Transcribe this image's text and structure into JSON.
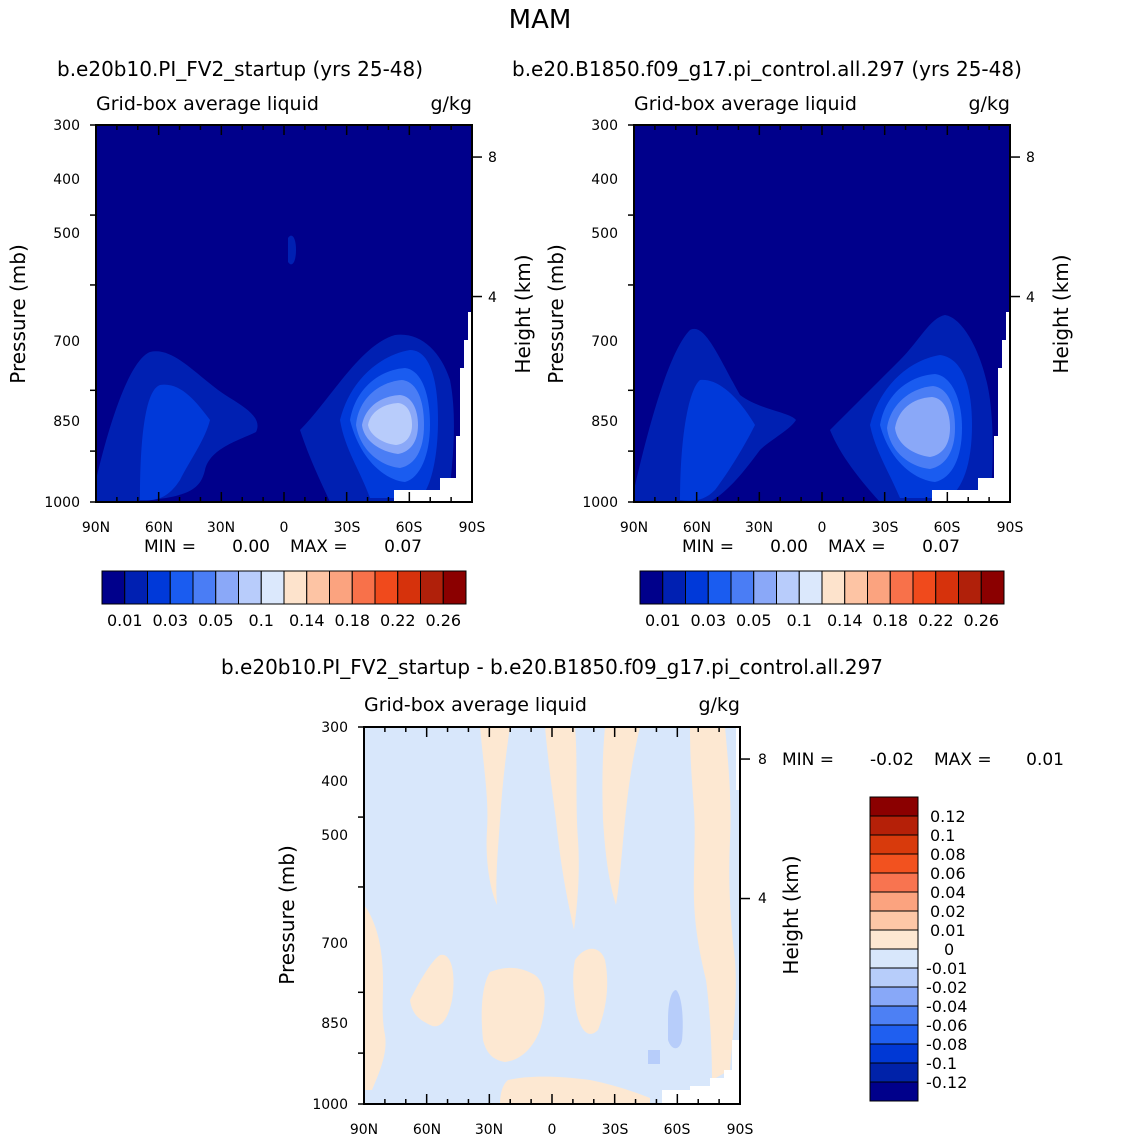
{
  "figure": {
    "season": "MAM"
  },
  "colors": {
    "seq": [
      "#00008b",
      "#0020b2",
      "#0039d9",
      "#1a5cf0",
      "#4a7df5",
      "#8aa8f8",
      "#b8ccfb",
      "#dbe8fc",
      "#fde3cc",
      "#fdc4a4",
      "#fba37f",
      "#f8714a",
      "#f04a1c",
      "#d6320c",
      "#b0200a",
      "#8b0000"
    ],
    "div": [
      "#00008b",
      "#0022a9",
      "#0038d5",
      "#1f5ff0",
      "#4d80f4",
      "#88a8f8",
      "#b7cdfa",
      "#d8e7fb",
      "#fde8d2",
      "#fdc7a7",
      "#fba37f",
      "#f87450",
      "#f2521f",
      "#d83a0c",
      "#b52008",
      "#8b0000"
    ]
  },
  "chart_data": [
    {
      "type": "heatmap",
      "title": "b.e20b10.PI_FV2_startup (yrs 25-48)",
      "subtitle_left": "Grid-box average liquid",
      "subtitle_right": "g/kg",
      "ylabel": "Pressure (mb)",
      "ylabel_right": "Height (km)",
      "x_ticklabels": [
        "90N",
        "60N",
        "30N",
        "0",
        "30S",
        "60S",
        "90S"
      ],
      "y_ticklabels": [
        "300",
        "400",
        "500",
        "700",
        "850",
        "1000"
      ],
      "y_ticks_mb": [
        300,
        400,
        500,
        700,
        850,
        1000
      ],
      "height_ticks": [
        "8",
        "4"
      ],
      "minmax": {
        "min_label": "MIN =",
        "min": "0.00",
        "max_label": "MAX =",
        "max": "0.07"
      },
      "colorbar_labels": [
        "0.01",
        "0.03",
        "0.05",
        "0.1",
        "0.14",
        "0.18",
        "0.22",
        "0.26"
      ],
      "maxima": [
        {
          "lat": "50S",
          "p_mb": 850,
          "value": 0.07
        },
        {
          "lat": "55N",
          "p_mb": 850,
          "value": 0.03
        }
      ]
    },
    {
      "type": "heatmap",
      "title": "b.e20.B1850.f09_g17.pi_control.all.297 (yrs 25-48)",
      "subtitle_left": "Grid-box average liquid",
      "subtitle_right": "g/kg",
      "ylabel": "Pressure (mb)",
      "ylabel_right": "Height (km)",
      "x_ticklabels": [
        "90N",
        "60N",
        "30N",
        "0",
        "30S",
        "60S",
        "90S"
      ],
      "y_ticklabels": [
        "300",
        "400",
        "500",
        "700",
        "850",
        "1000"
      ],
      "y_ticks_mb": [
        300,
        400,
        500,
        700,
        850,
        1000
      ],
      "height_ticks": [
        "8",
        "4"
      ],
      "minmax": {
        "min_label": "MIN =",
        "min": "0.00",
        "max_label": "MAX =",
        "max": "0.07"
      },
      "colorbar_labels": [
        "0.01",
        "0.03",
        "0.05",
        "0.1",
        "0.14",
        "0.18",
        "0.22",
        "0.26"
      ],
      "maxima": [
        {
          "lat": "50S",
          "p_mb": 850,
          "value": 0.07
        },
        {
          "lat": "55N",
          "p_mb": 850,
          "value": 0.03
        }
      ]
    },
    {
      "type": "heatmap",
      "title": "b.e20b10.PI_FV2_startup - b.e20.B1850.f09_g17.pi_control.all.297",
      "subtitle_left": "Grid-box average liquid",
      "subtitle_right": "g/kg",
      "ylabel": "Pressure (mb)",
      "ylabel_right": "Height (km)",
      "x_ticklabels": [
        "90N",
        "60N",
        "30N",
        "0",
        "30S",
        "60S",
        "90S"
      ],
      "y_ticklabels": [
        "300",
        "400",
        "500",
        "700",
        "850",
        "1000"
      ],
      "y_ticks_mb": [
        300,
        400,
        500,
        700,
        850,
        1000
      ],
      "height_ticks": [
        "8",
        "4"
      ],
      "minmax": {
        "min_label": "MIN =",
        "min": "-0.02",
        "max_label": "MAX =",
        "max": "0.01"
      },
      "colorbar_labels": [
        "0.12",
        "0.1",
        "0.08",
        "0.06",
        "0.04",
        "0.02",
        "0.01",
        "0",
        "-0.01",
        "-0.02",
        "-0.04",
        "-0.06",
        "-0.08",
        "-0.1",
        "-0.12"
      ]
    }
  ]
}
